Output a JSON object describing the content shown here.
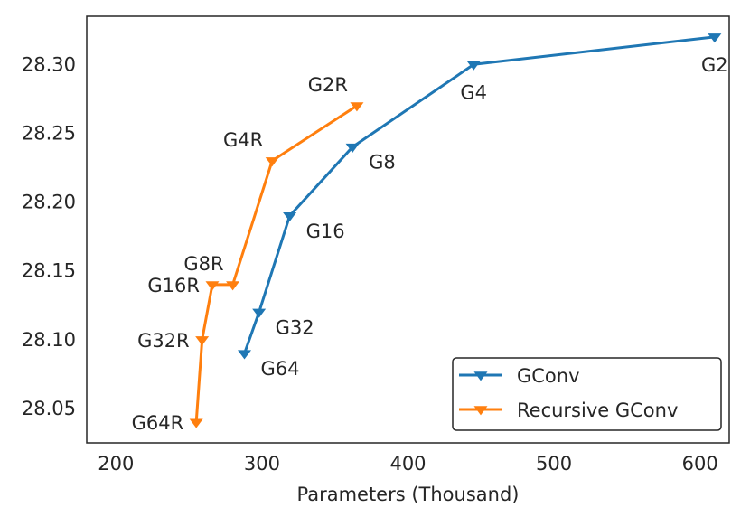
{
  "chart_data": {
    "type": "line",
    "title": "",
    "xlabel": "Parameters (Thousand)",
    "ylabel": "",
    "xlim": [
      180,
      620
    ],
    "ylim": [
      28.025,
      28.335
    ],
    "xticks": [
      200,
      300,
      400,
      500,
      600
    ],
    "yticks": [
      28.05,
      28.1,
      28.15,
      28.2,
      28.25,
      28.3
    ],
    "xtick_labels": [
      "200",
      "300",
      "400",
      "500",
      "600"
    ],
    "ytick_labels": [
      "28.05",
      "28.10",
      "28.15",
      "28.20",
      "28.25",
      "28.30"
    ],
    "grid": false,
    "legend_position": "bottom-right",
    "series": [
      {
        "name": "GConv",
        "color": "#1f77b4",
        "marker": "down-triangle",
        "points": [
          {
            "label": "G64",
            "x": 288,
            "y": 28.09,
            "label_pos": "right-below"
          },
          {
            "label": "G32",
            "x": 298,
            "y": 28.12,
            "label_pos": "right-below"
          },
          {
            "label": "G16",
            "x": 319,
            "y": 28.19,
            "label_pos": "right-below"
          },
          {
            "label": "G8",
            "x": 362,
            "y": 28.24,
            "label_pos": "right-below"
          },
          {
            "label": "G4",
            "x": 445,
            "y": 28.3,
            "label_pos": "below"
          },
          {
            "label": "G2",
            "x": 610,
            "y": 28.32,
            "label_pos": "below"
          }
        ]
      },
      {
        "name": "Recursive GConv",
        "color": "#ff7f0e",
        "marker": "down-triangle",
        "points": [
          {
            "label": "G64R",
            "x": 255,
            "y": 28.04,
            "label_pos": "left"
          },
          {
            "label": "G32R",
            "x": 259,
            "y": 28.1,
            "label_pos": "left"
          },
          {
            "label": "G16R",
            "x": 266,
            "y": 28.14,
            "label_pos": "left"
          },
          {
            "label": "G8R",
            "x": 280,
            "y": 28.14,
            "label_pos": "above-left"
          },
          {
            "label": "G4R",
            "x": 307,
            "y": 28.23,
            "label_pos": "above-left"
          },
          {
            "label": "G2R",
            "x": 365,
            "y": 28.27,
            "label_pos": "above-left"
          }
        ]
      }
    ]
  }
}
